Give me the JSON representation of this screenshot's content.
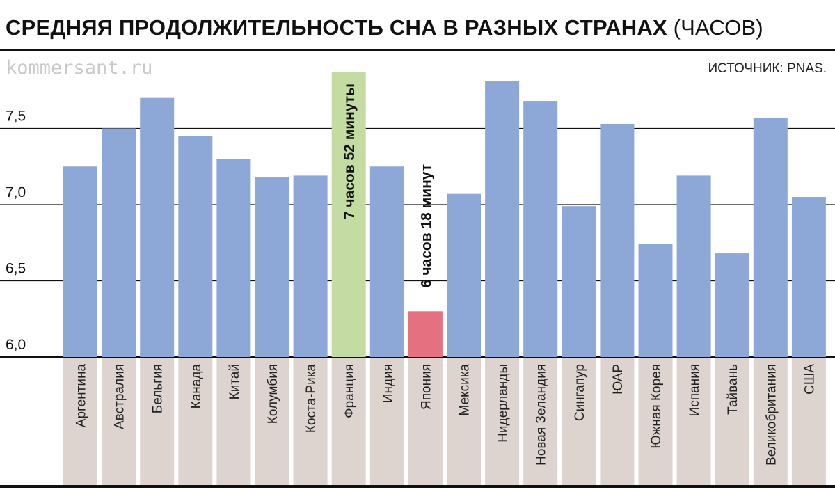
{
  "title": "СРЕДНЯЯ ПРОДОЛЖИТЕЛЬНОСТЬ СНА В РАЗНЫХ СТРАНАХ",
  "title_unit": "(ЧАСОВ)",
  "site": "kommersant.ru",
  "source": "ИСТОЧНИК: PNAS.",
  "colors": {
    "bar": "#8da7d6",
    "highlight_max": "#c4dba1",
    "highlight_min": "#e5707f",
    "label_bg": "#ded4cf",
    "gridline": "#111111"
  },
  "chart_data": {
    "type": "bar",
    "categories": [
      "Аргентина",
      "Австралия",
      "Бельгия",
      "Канада",
      "Китай",
      "Колумбия",
      "Коста-Рика",
      "Франция",
      "Индия",
      "Япония",
      "Мексика",
      "Нидерланды",
      "Новая Зеландия",
      "Сингапур",
      "ЮАР",
      "Южная Корея",
      "Испания",
      "Тайвань",
      "Великобритания",
      "США"
    ],
    "values": [
      7.25,
      7.5,
      7.7,
      7.45,
      7.3,
      7.18,
      7.19,
      7.87,
      7.25,
      6.3,
      7.07,
      7.81,
      7.68,
      6.99,
      7.53,
      6.74,
      7.19,
      6.68,
      7.57,
      7.05
    ],
    "y_ticks": [
      "6,0",
      "6,5",
      "7,0",
      "7,5"
    ],
    "y_tick_values": [
      6.0,
      6.5,
      7.0,
      7.5
    ],
    "ylim": [
      6.0,
      7.87
    ],
    "grid": true,
    "highlights": [
      {
        "category": "Франция",
        "label": "7 часов 52 минуты"
      },
      {
        "category": "Япония",
        "label": "6 часов 18 минут"
      }
    ]
  }
}
